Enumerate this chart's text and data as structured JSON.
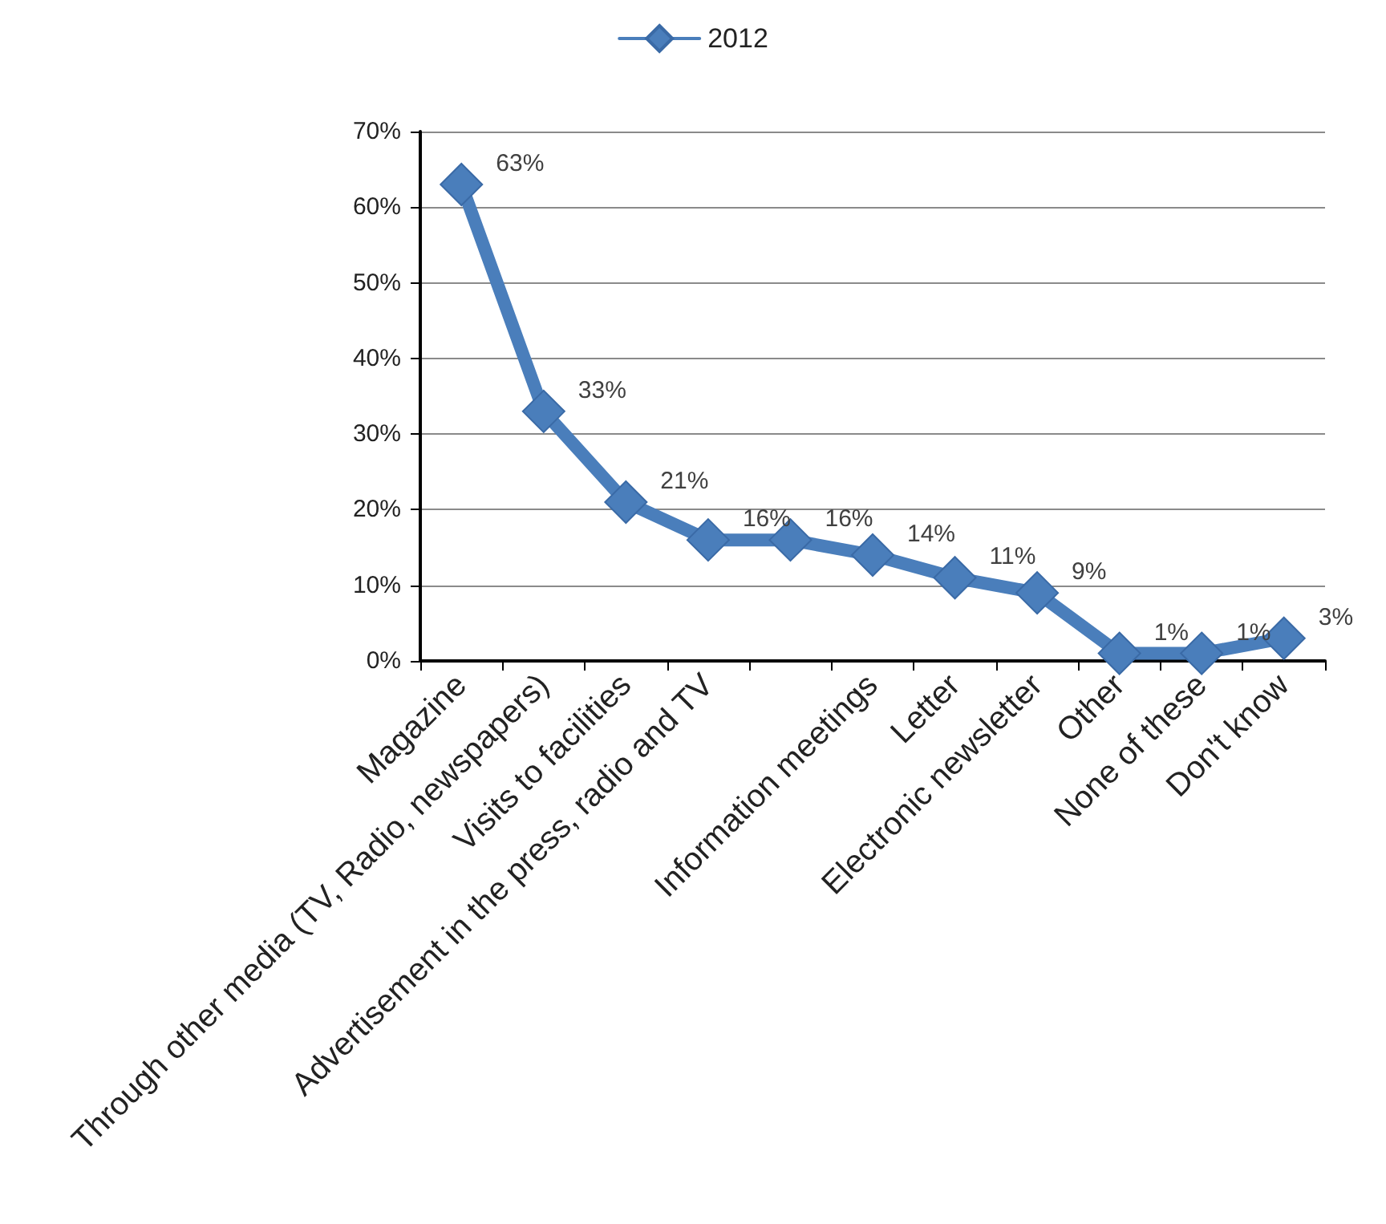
{
  "chart_data": {
    "type": "line",
    "categories": [
      "Magazine",
      "Through other media (TV, Radio, newspapers)",
      "Visits to facilities",
      "Advertisement in the press, radio and TV",
      null,
      "Information meetings",
      "Letter",
      "Electronic newsletter",
      "Other",
      "None of these",
      "Don't know"
    ],
    "series": [
      {
        "name": "2012",
        "color": "#4a7ebb",
        "values": [
          63,
          33,
          21,
          16,
          16,
          14,
          11,
          9,
          1,
          1,
          3
        ],
        "value_labels": [
          "63%",
          "33%",
          "21%",
          "16%",
          "16%",
          "14%",
          "11%",
          "9%",
          "1%",
          "1%",
          "3%"
        ]
      }
    ],
    "ylim": [
      0,
      70
    ],
    "yticks": [
      {
        "value": 0,
        "label": "0%"
      },
      {
        "value": 10,
        "label": "10%"
      },
      {
        "value": 20,
        "label": "20%"
      },
      {
        "value": 30,
        "label": "30%"
      },
      {
        "value": 40,
        "label": "40%"
      },
      {
        "value": 50,
        "label": "50%"
      },
      {
        "value": 60,
        "label": "60%"
      },
      {
        "value": 70,
        "label": "70%"
      }
    ],
    "grid": "y",
    "legend": "top",
    "marker": "diamond",
    "line_style": "solid"
  }
}
